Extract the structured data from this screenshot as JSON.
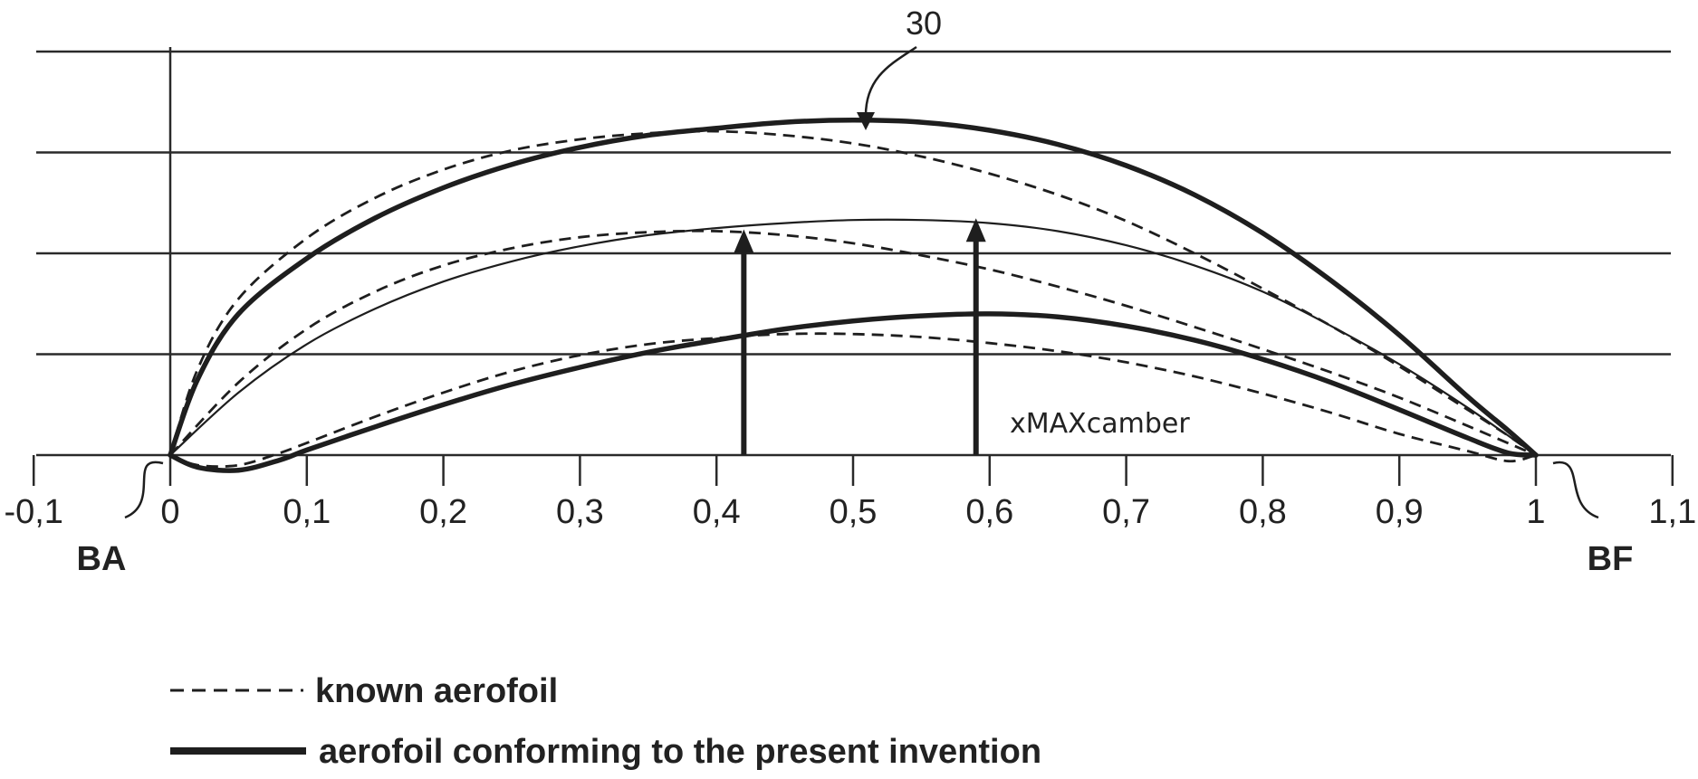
{
  "figure": {
    "reference_numeral": "30",
    "annotation": "xMAXcamber",
    "leading_edge_label": "BA",
    "trailing_edge_label": "BF"
  },
  "legend": {
    "items": [
      {
        "key": "known",
        "label": "known aerofoil",
        "style": "dashed"
      },
      {
        "key": "invention",
        "label": "aerofoil conforming to the present invention",
        "style": "solid"
      }
    ]
  },
  "colors": {
    "line": "#1e1e1e",
    "grid": "#2a2a2a"
  },
  "chart_data": {
    "type": "line",
    "x_ticks": [
      "-0,1",
      "0",
      "0,1",
      "0,2",
      "0,3",
      "0,4",
      "0,5",
      "0,6",
      "0,7",
      "0,8",
      "0,9",
      "1",
      "1,1"
    ],
    "x_tick_values": [
      -0.1,
      0,
      0.1,
      0.2,
      0.3,
      0.4,
      0.5,
      0.6,
      0.7,
      0.8,
      0.9,
      1.0,
      1.1
    ],
    "xlim": [
      -0.1,
      1.1
    ],
    "ylim": [
      0,
      4
    ],
    "y_gridlines": [
      1,
      2,
      3,
      4
    ],
    "max_camber_positions": [
      0.42,
      0.59
    ],
    "series": [
      {
        "key": "invention",
        "line": "outer",
        "x": [
          0,
          0.02,
          0.05,
          0.1,
          0.15,
          0.2,
          0.25,
          0.3,
          0.35,
          0.4,
          0.45,
          0.5,
          0.55,
          0.6,
          0.65,
          0.7,
          0.75,
          0.8,
          0.85,
          0.9,
          0.95,
          0.98,
          1.0
        ],
        "y": [
          0,
          0.75,
          1.4,
          1.95,
          2.35,
          2.65,
          2.88,
          3.05,
          3.17,
          3.24,
          3.3,
          3.32,
          3.3,
          3.22,
          3.08,
          2.87,
          2.58,
          2.2,
          1.73,
          1.19,
          0.58,
          0.24,
          0
        ]
      },
      {
        "key": "known",
        "line": "outer",
        "x": [
          0,
          0.02,
          0.05,
          0.1,
          0.15,
          0.2,
          0.25,
          0.3,
          0.35,
          0.4,
          0.45,
          0.5,
          0.55,
          0.6,
          0.65,
          0.7,
          0.75,
          0.8,
          0.85,
          0.9,
          0.95,
          0.98,
          1.0
        ],
        "y": [
          0,
          0.85,
          1.55,
          2.15,
          2.55,
          2.83,
          3.02,
          3.13,
          3.19,
          3.21,
          3.17,
          3.09,
          2.96,
          2.79,
          2.58,
          2.32,
          2.0,
          1.65,
          1.28,
          0.88,
          0.45,
          0.19,
          0
        ]
      },
      {
        "key": "invention",
        "line": "mean",
        "x": [
          0,
          0.05,
          0.1,
          0.15,
          0.2,
          0.25,
          0.3,
          0.35,
          0.4,
          0.45,
          0.5,
          0.55,
          0.6,
          0.65,
          0.7,
          0.75,
          0.8,
          0.85,
          0.9,
          0.95,
          1.0
        ],
        "y": [
          0,
          0.62,
          1.1,
          1.45,
          1.72,
          1.92,
          2.07,
          2.18,
          2.25,
          2.3,
          2.33,
          2.33,
          2.3,
          2.22,
          2.08,
          1.88,
          1.62,
          1.28,
          0.9,
          0.47,
          0
        ]
      },
      {
        "key": "known",
        "line": "mean",
        "x": [
          0,
          0.05,
          0.1,
          0.15,
          0.2,
          0.25,
          0.3,
          0.35,
          0.4,
          0.45,
          0.5,
          0.55,
          0.6,
          0.65,
          0.7,
          0.75,
          0.8,
          0.85,
          0.9,
          0.95,
          1.0
        ],
        "y": [
          0,
          0.72,
          1.25,
          1.62,
          1.88,
          2.05,
          2.16,
          2.21,
          2.22,
          2.18,
          2.1,
          1.98,
          1.84,
          1.67,
          1.48,
          1.27,
          1.05,
          0.82,
          0.57,
          0.29,
          0
        ]
      },
      {
        "key": "invention",
        "line": "inner",
        "x": [
          0,
          0.02,
          0.05,
          0.08,
          0.1,
          0.15,
          0.2,
          0.25,
          0.3,
          0.35,
          0.4,
          0.45,
          0.5,
          0.55,
          0.6,
          0.65,
          0.7,
          0.75,
          0.8,
          0.85,
          0.9,
          0.95,
          0.98,
          1.0
        ],
        "y": [
          0,
          -0.12,
          -0.15,
          -0.05,
          0.05,
          0.28,
          0.5,
          0.7,
          0.87,
          1.02,
          1.14,
          1.25,
          1.33,
          1.38,
          1.4,
          1.37,
          1.28,
          1.14,
          0.95,
          0.72,
          0.45,
          0.17,
          0.02,
          0
        ]
      },
      {
        "key": "known",
        "line": "inner",
        "x": [
          0,
          0.02,
          0.05,
          0.08,
          0.1,
          0.15,
          0.2,
          0.25,
          0.3,
          0.35,
          0.4,
          0.45,
          0.5,
          0.55,
          0.6,
          0.65,
          0.7,
          0.75,
          0.8,
          0.85,
          0.9,
          0.95,
          0.98,
          1.0
        ],
        "y": [
          0,
          -0.1,
          -0.1,
          0.02,
          0.12,
          0.38,
          0.62,
          0.83,
          0.99,
          1.1,
          1.16,
          1.2,
          1.2,
          1.17,
          1.11,
          1.03,
          0.92,
          0.78,
          0.61,
          0.42,
          0.21,
          0.04,
          -0.06,
          0
        ]
      }
    ]
  }
}
